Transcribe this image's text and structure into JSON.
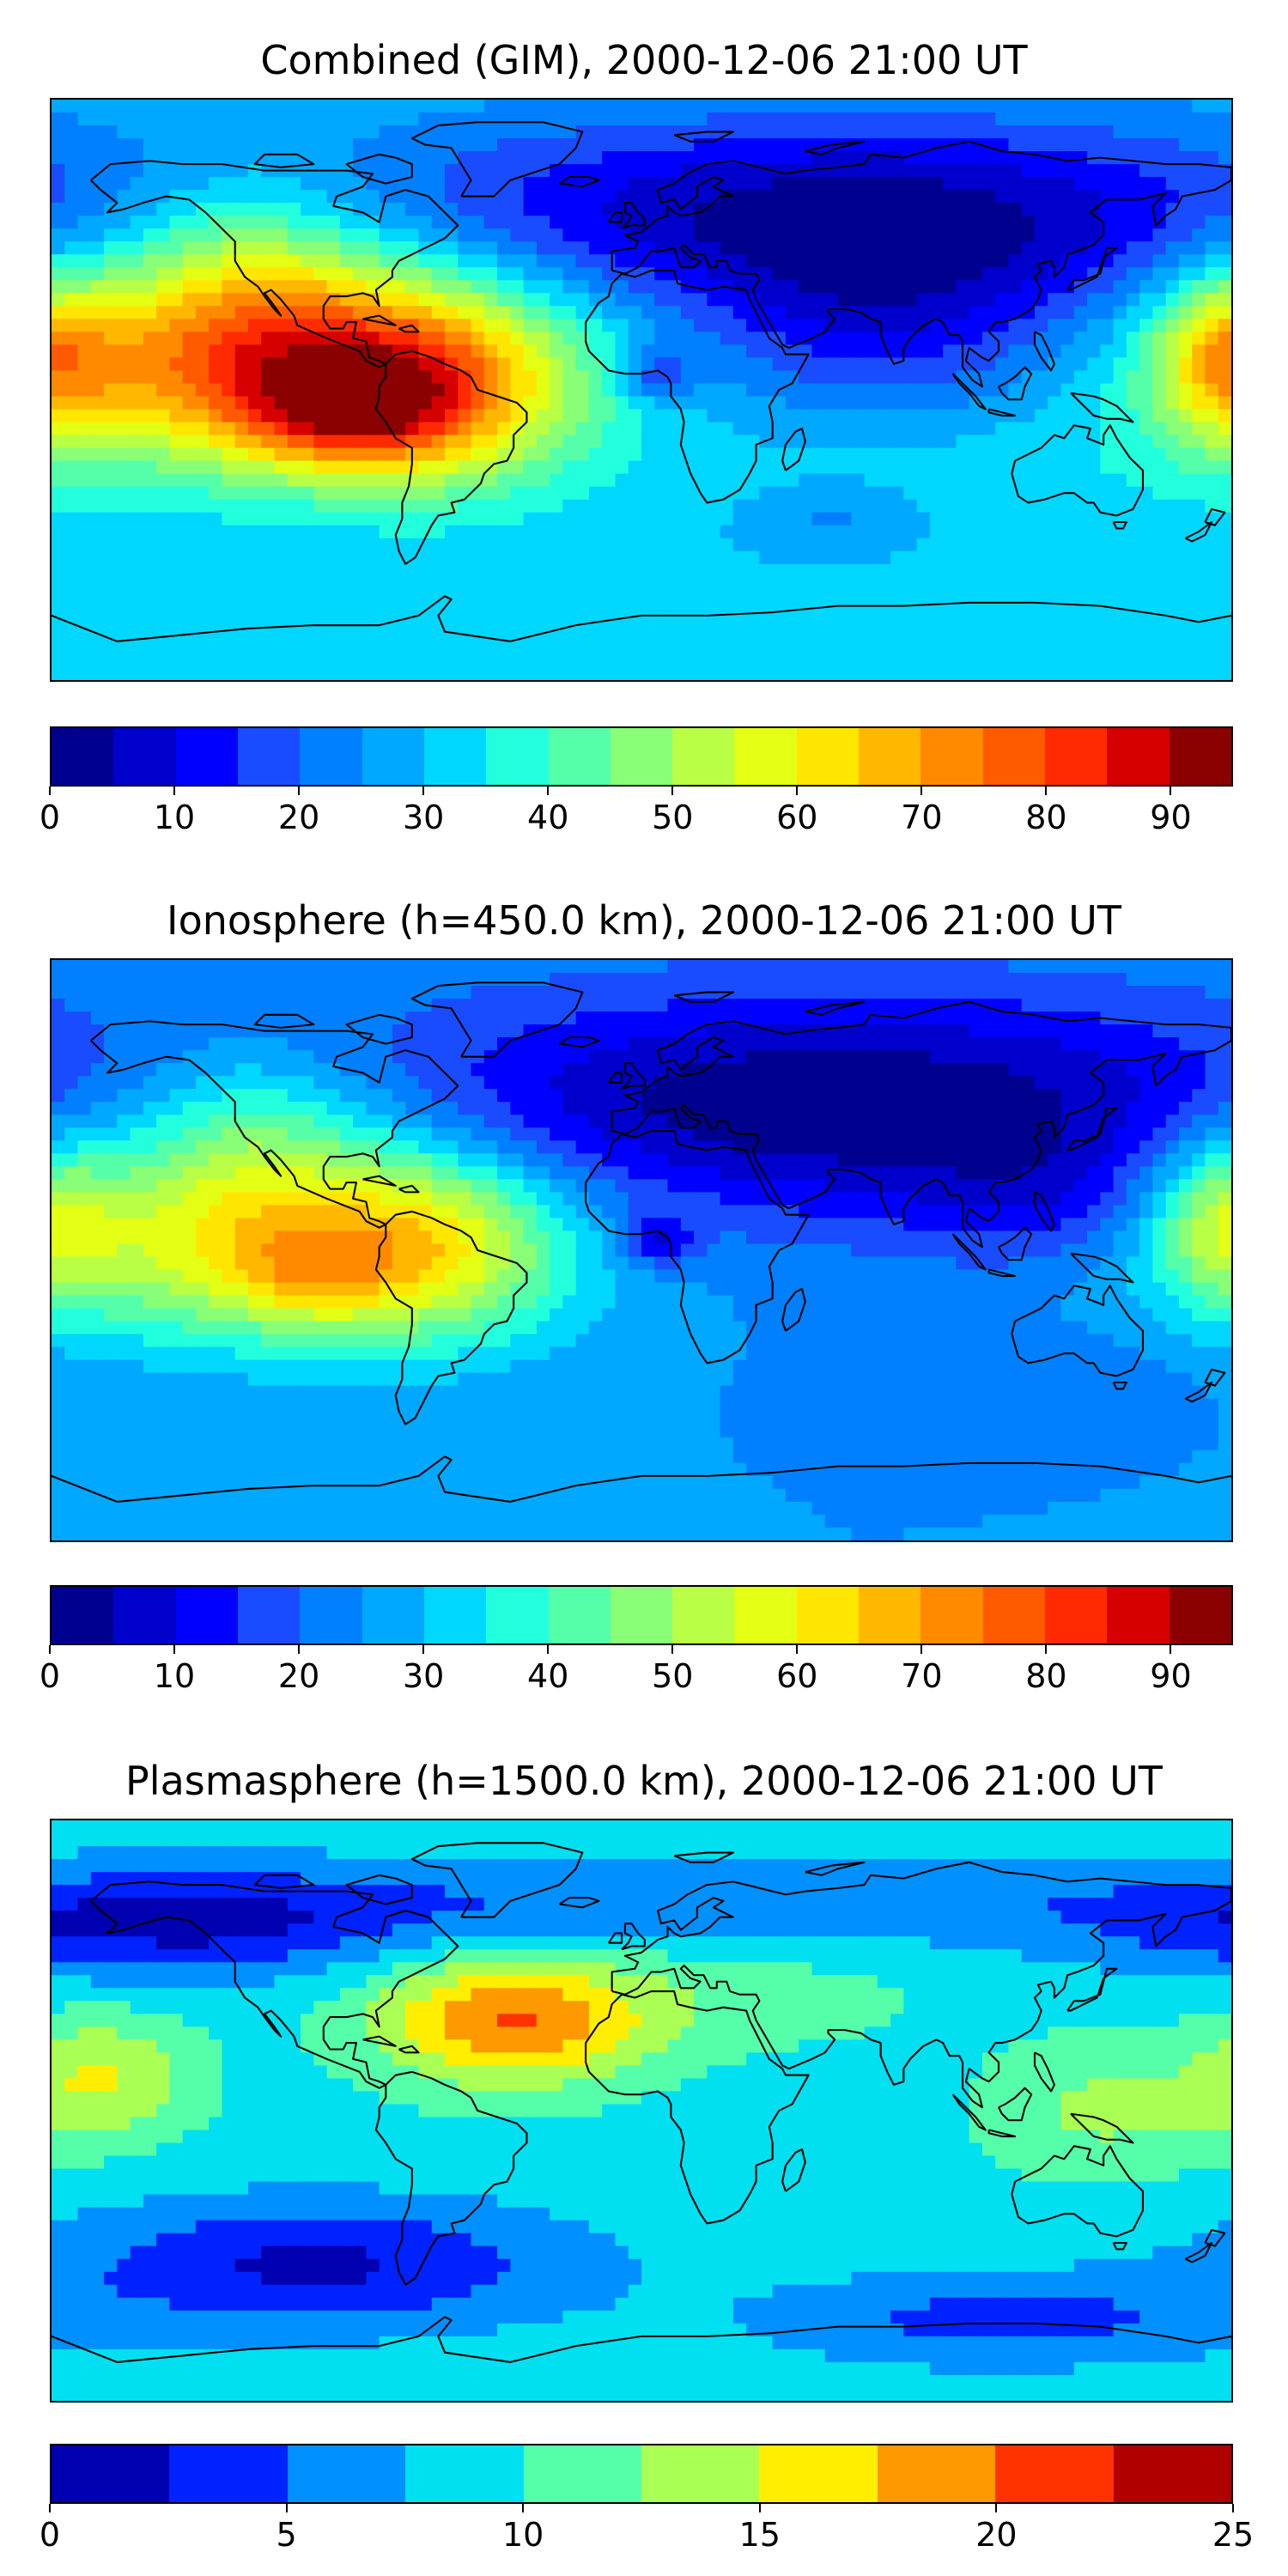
{
  "panels": [
    {
      "title": "Combined (GIM), 2000-12-06 21:00 UT",
      "colorbar": {
        "min": 0,
        "max": 95,
        "step": 5,
        "ticks": [
          "0",
          "10",
          "20",
          "30",
          "40",
          "50",
          "60",
          "70",
          "80",
          "90"
        ],
        "tick_values": [
          0,
          10,
          20,
          30,
          40,
          50,
          60,
          70,
          80,
          90
        ],
        "colors": [
          "#00008f",
          "#0000cc",
          "#0000ff",
          "#1a4cff",
          "#0080ff",
          "#00a8ff",
          "#00d7ff",
          "#22ffdd",
          "#55ffa9",
          "#88ff76",
          "#b8ff45",
          "#e2ff14",
          "#ffe600",
          "#ffb700",
          "#ff8a00",
          "#ff5a00",
          "#ff2a00",
          "#d60000",
          "#8b0000"
        ]
      },
      "field": {
        "base": 30,
        "blobs": [
          {
            "lon": -110,
            "lat": 8,
            "sx": 55,
            "sy": 22,
            "v": 50
          },
          {
            "lon": -90,
            "lat": -8,
            "sx": 22,
            "sy": 12,
            "v": 25
          },
          {
            "lon": -60,
            "lat": 0,
            "sx": 28,
            "sy": 22,
            "v": 20
          },
          {
            "lon": -120,
            "lat": 40,
            "sx": 30,
            "sy": 18,
            "v": 15
          },
          {
            "lon": 60,
            "lat": 55,
            "sx": 110,
            "sy": 22,
            "v": -25
          },
          {
            "lon": 75,
            "lat": 20,
            "sx": 45,
            "sy": 25,
            "v": -15
          },
          {
            "lon": 5,
            "lat": 5,
            "sx": 8,
            "sy": 6,
            "v": -15
          },
          {
            "lon": 178,
            "lat": 10,
            "sx": 15,
            "sy": 18,
            "v": 25
          },
          {
            "lon": 60,
            "lat": -40,
            "sx": 20,
            "sy": 8,
            "v": -8
          },
          {
            "lon": 90,
            "lat": -25,
            "sx": 60,
            "sy": 20,
            "v": 5
          }
        ]
      }
    },
    {
      "title": "Ionosphere  (h=450.0 km), 2000-12-06 21:00 UT",
      "colorbar": {
        "min": 0,
        "max": 95,
        "step": 5,
        "ticks": [
          "0",
          "10",
          "20",
          "30",
          "40",
          "50",
          "60",
          "70",
          "80",
          "90"
        ],
        "tick_values": [
          0,
          10,
          20,
          30,
          40,
          50,
          60,
          70,
          80,
          90
        ],
        "colors": [
          "#00008f",
          "#0000cc",
          "#0000ff",
          "#1a4cff",
          "#0080ff",
          "#00a8ff",
          "#00d7ff",
          "#22ffdd",
          "#55ffa9",
          "#88ff76",
          "#b8ff45",
          "#e2ff14",
          "#ffe600",
          "#ffb700",
          "#ff8a00",
          "#ff5a00",
          "#ff2a00",
          "#d60000",
          "#8b0000"
        ]
      },
      "field": {
        "base": 25,
        "blobs": [
          {
            "lon": -110,
            "lat": 5,
            "sx": 55,
            "sy": 22,
            "v": 40
          },
          {
            "lon": -100,
            "lat": -10,
            "sx": 18,
            "sy": 10,
            "v": 12
          },
          {
            "lon": -60,
            "lat": 0,
            "sx": 25,
            "sy": 20,
            "v": 15
          },
          {
            "lon": -120,
            "lat": 40,
            "sx": 30,
            "sy": 16,
            "v": 12
          },
          {
            "lon": 60,
            "lat": 45,
            "sx": 100,
            "sy": 25,
            "v": -25
          },
          {
            "lon": 5,
            "lat": 3,
            "sx": 8,
            "sy": 6,
            "v": -15
          },
          {
            "lon": 178,
            "lat": 10,
            "sx": 15,
            "sy": 18,
            "v": 20
          },
          {
            "lon": 120,
            "lat": 15,
            "sx": 25,
            "sy": 15,
            "v": -8
          },
          {
            "lon": 120,
            "lat": -40,
            "sx": 35,
            "sy": 10,
            "v": -5
          }
        ]
      }
    },
    {
      "title": "Plasmasphere (h=1500.0 km), 2000-12-06 21:00 UT",
      "colorbar": {
        "min": 0,
        "max": 25,
        "step": 2.5,
        "ticks": [
          "0",
          "5",
          "10",
          "15",
          "20",
          "25"
        ],
        "tick_values": [
          0,
          5,
          10,
          15,
          20,
          25
        ],
        "colors": [
          "#0000b0",
          "#0022ff",
          "#0090ff",
          "#00e0f0",
          "#55ffa9",
          "#aaff55",
          "#ffee00",
          "#ff9900",
          "#ff3300",
          "#b00000"
        ]
      },
      "field": {
        "base": 9,
        "blobs": [
          {
            "lon": -40,
            "lat": 28,
            "sx": 30,
            "sy": 14,
            "v": 11
          },
          {
            "lon": -165,
            "lat": 10,
            "sx": 20,
            "sy": 14,
            "v": 6
          },
          {
            "lon": -145,
            "lat": 58,
            "sx": 55,
            "sy": 12,
            "v": -7
          },
          {
            "lon": 25,
            "lat": 65,
            "sx": 100,
            "sy": 10,
            "v": -4
          },
          {
            "lon": 140,
            "lat": 0,
            "sx": 25,
            "sy": 15,
            "v": 4
          },
          {
            "lon": -100,
            "lat": -48,
            "sx": 55,
            "sy": 14,
            "v": -7
          },
          {
            "lon": 110,
            "lat": -65,
            "sx": 50,
            "sy": 10,
            "v": -5
          },
          {
            "lon": 35,
            "lat": 35,
            "sx": 40,
            "sy": 12,
            "v": 2
          }
        ]
      }
    }
  ]
}
